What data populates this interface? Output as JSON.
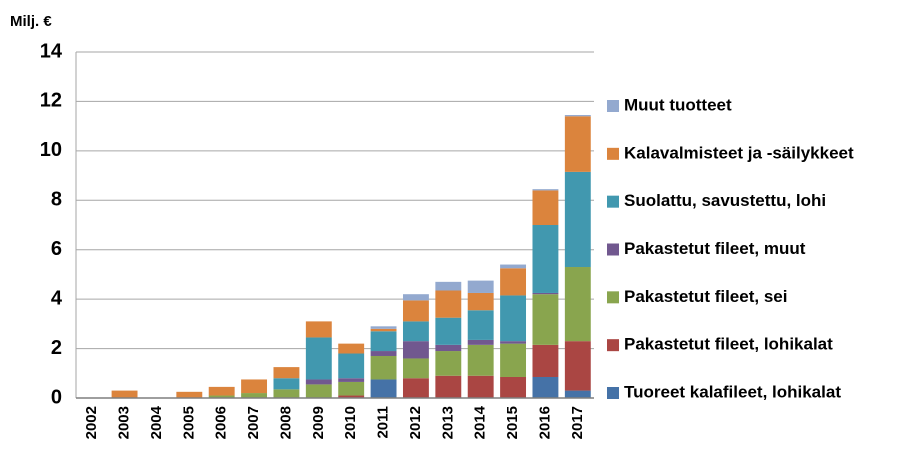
{
  "chart_data": {
    "type": "stacked_bar",
    "y_label": "Milj. €",
    "categories": [
      "2002",
      "2003",
      "2004",
      "2005",
      "2006",
      "2007",
      "2008",
      "2009",
      "2010",
      "2011",
      "2012",
      "2013",
      "2014",
      "2015",
      "2016",
      "2017"
    ],
    "series": [
      {
        "name": "Tuoreet kalafileet, lohikalat",
        "color": "#4572a7",
        "values": [
          0,
          0,
          0,
          0,
          0,
          0,
          0,
          0,
          0,
          0.75,
          0,
          0,
          0,
          0,
          0.85,
          0.3
        ]
      },
      {
        "name": "Pakastetut fileet, lohikalat",
        "color": "#aa4643",
        "values": [
          0,
          0,
          0,
          0,
          0,
          0,
          0,
          0,
          0.1,
          0,
          0.8,
          0.9,
          0.9,
          0.85,
          1.3,
          2.0
        ]
      },
      {
        "name": "Pakastetut fileet, sei",
        "color": "#89a54e",
        "values": [
          0,
          0,
          0,
          0,
          0.1,
          0.2,
          0.35,
          0.55,
          0.55,
          0.95,
          0.8,
          1.0,
          1.25,
          1.35,
          2.05,
          3.0
        ]
      },
      {
        "name": "Pakastetut fileet, muut",
        "color": "#71588f",
        "values": [
          0,
          0,
          0,
          0,
          0,
          0,
          0,
          0.2,
          0.15,
          0.2,
          0.7,
          0.25,
          0.2,
          0.1,
          0.05,
          0
        ]
      },
      {
        "name": "Suolattu, savustettu, lohi",
        "color": "#4198af",
        "values": [
          0,
          0,
          0,
          0,
          0,
          0,
          0.45,
          1.7,
          1.0,
          0.8,
          0.8,
          1.1,
          1.2,
          1.85,
          2.75,
          3.85
        ]
      },
      {
        "name": "Kalavalmisteet ja -säilykkeet",
        "color": "#db843d",
        "values": [
          0,
          0.3,
          0,
          0.25,
          0.35,
          0.55,
          0.45,
          0.65,
          0.4,
          0.1,
          0.85,
          1.1,
          0.7,
          1.1,
          1.4,
          2.25
        ]
      },
      {
        "name": "Muut tuotteet",
        "color": "#93a9cf",
        "values": [
          0,
          0,
          0,
          0,
          0,
          0,
          0,
          0,
          0,
          0.1,
          0.25,
          0.35,
          0.5,
          0.15,
          0.05,
          0.05
        ]
      }
    ],
    "ylim": [
      0,
      14
    ],
    "yticks": [
      0,
      2,
      4,
      6,
      8,
      10,
      12,
      14
    ],
    "grid": true,
    "legend": "right"
  }
}
